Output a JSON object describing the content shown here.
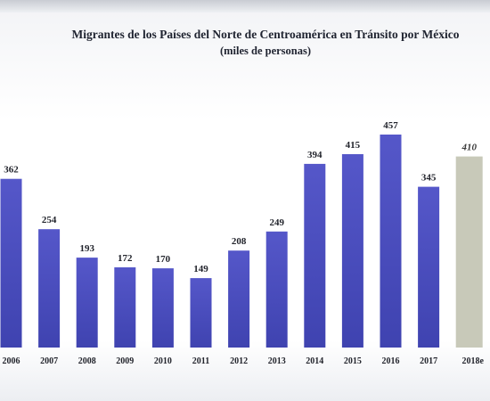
{
  "chart_data": {
    "type": "bar",
    "title": "Migrantes de los Países del Norte de Centroamérica en Tránsito por México",
    "subtitle": "(miles de personas)",
    "xlabel": "",
    "ylabel": "",
    "categories": [
      "2006",
      "2007",
      "2008",
      "2009",
      "2010",
      "2011",
      "2012",
      "2013",
      "2014",
      "2015",
      "2016",
      "2017",
      "2018e"
    ],
    "values": [
      362,
      254,
      193,
      172,
      170,
      149,
      208,
      249,
      394,
      415,
      457,
      345,
      410
    ],
    "value_labels": [
      "362",
      "254",
      "193",
      "172",
      "170",
      "149",
      "208",
      "249",
      "394",
      "415",
      "457",
      "345",
      "410"
    ],
    "estimated": [
      false,
      false,
      false,
      false,
      false,
      false,
      false,
      false,
      false,
      false,
      false,
      false,
      true
    ],
    "ylim": [
      0,
      480
    ],
    "grid": false,
    "legend": "none",
    "colors": {
      "bar_top": "#5557c9",
      "bar_bottom": "#3f43b0",
      "estimate_bar": "#c8c9b9"
    }
  }
}
